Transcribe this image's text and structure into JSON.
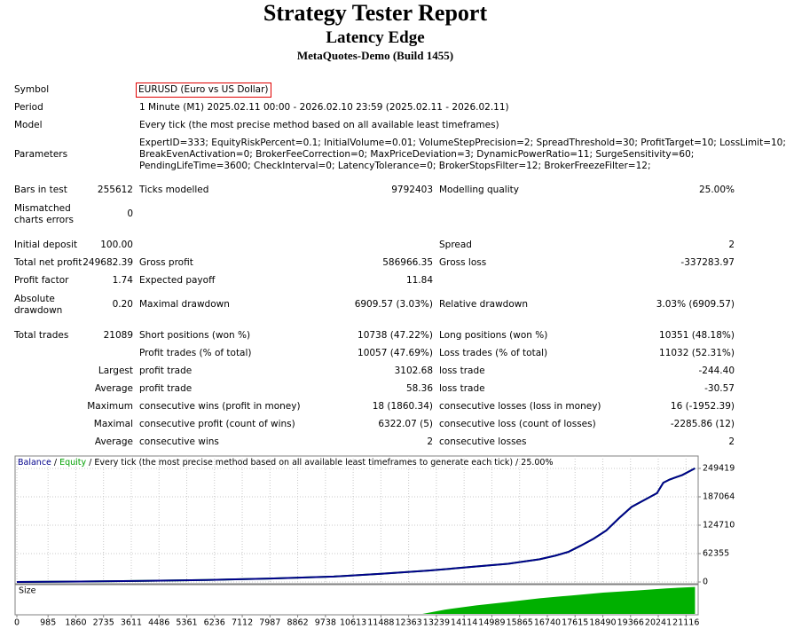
{
  "header": {
    "title": "Strategy Tester Report",
    "subtitle": "Latency Edge",
    "server": "MetaQuotes-Demo (Build 1455)"
  },
  "info": [
    {
      "label": "Symbol",
      "value": [
        "EURUSD (Euro vs US Dollar)"
      ]
    },
    {
      "label": "Period",
      "value": [
        "1 Minute (M1) 2025.02.11 00:00 - 2026.02.10 23:59 (2025.02.11 - 2026.02.11)"
      ]
    },
    {
      "label": "Model",
      "value": [
        "Every tick (the most precise method based on all available least timeframes)"
      ]
    },
    {
      "label": "Parameters",
      "value": [
        "ExpertID=333; EquityRiskPercent=0.1; InitialVolume=0.01; VolumeStepPrecision=2; SpreadThreshold=30; ProfitTarget=10; LossLimit=10;",
        "BreakEvenActivation=0; BrokerFeeCorrection=0; MaxPriceDeviation=3; DynamicPowerRatio=11; SurgeSensitivity=60;",
        "PendingLifeTime=3600; CheckInterval=0; LatencyTolerance=0; BrokerStopsFilter=12; BrokerFreezeFilter=12;"
      ]
    }
  ],
  "stats": [
    {
      "label": "Bars in test",
      "value": "255612",
      "c2": [
        "Ticks modelled",
        "9792403"
      ],
      "c3": [
        "Modelling quality",
        "25.00%"
      ]
    },
    {
      "label": "Mismatched charts errors",
      "value": "0"
    },
    {
      "label": "Initial deposit",
      "value": "100.00",
      "c3": [
        "Spread",
        "2"
      ]
    },
    {
      "label": "Total net profit",
      "value": "249682.39",
      "c2": [
        "Gross profit",
        "586966.35"
      ],
      "c3": [
        "Gross loss",
        "-337283.97"
      ]
    },
    {
      "label": "Profit factor",
      "value": "1.74",
      "c2": [
        "Expected payoff",
        "11.84"
      ]
    },
    {
      "label": "Absolute drawdown",
      "value": "0.20",
      "c2": [
        "Maximal drawdown",
        "6909.57 (3.03%)"
      ],
      "c3": [
        "Relative drawdown",
        "3.03% (6909.57)"
      ]
    },
    {
      "label": "Total trades",
      "value": "21089",
      "c2": [
        "Short positions (won %)",
        "10738 (47.22%)"
      ],
      "c3": [
        "Long positions (won %)",
        "10351 (48.18%)"
      ]
    },
    {
      "c2": [
        "Profit trades (% of total)",
        "10057 (47.69%)"
      ],
      "c3": [
        "Loss trades (% of total)",
        "11032 (52.31%)"
      ]
    },
    {
      "value": "Largest",
      "c2": [
        "profit trade",
        "3102.68"
      ],
      "c3": [
        "loss trade",
        "-244.40"
      ]
    },
    {
      "value": "Average",
      "c2": [
        "profit trade",
        "58.36"
      ],
      "c3": [
        "loss trade",
        "-30.57"
      ]
    },
    {
      "value": "Maximum",
      "c2": [
        "consecutive wins (profit in money)",
        "18 (1860.34)"
      ],
      "c3": [
        "consecutive losses (loss in money)",
        "16 (-1952.39)"
      ]
    },
    {
      "value": "Maximal",
      "c2": [
        "consecutive profit (count of wins)",
        "6322.07 (5)"
      ],
      "c3": [
        "consecutive loss (count of losses)",
        "-2285.86 (12)"
      ]
    },
    {
      "value": "Average",
      "c2": [
        "consecutive wins",
        "2"
      ],
      "c3": [
        "consecutive losses",
        "2"
      ]
    }
  ],
  "chart_data": {
    "type": "line",
    "separator": "/",
    "note": "/ Every tick (the most precise method based on all available least timeframes to generate each tick) / 25.00%",
    "x": [
      0,
      2000,
      4000,
      6000,
      8000,
      10000,
      11500,
      13000,
      14500,
      15500,
      16500,
      17000,
      17400,
      17800,
      18200,
      18600,
      19000,
      19400,
      19800,
      20200,
      20400,
      20600,
      21000,
      21400
    ],
    "series": [
      {
        "name": "Balance",
        "color": "#00008b",
        "values": [
          100,
          1000,
          2500,
          4500,
          7500,
          12000,
          18000,
          25000,
          34000,
          40000,
          50000,
          58000,
          66000,
          80000,
          95000,
          113000,
          140000,
          165000,
          180000,
          195000,
          218000,
          225000,
          235000,
          249682.39
        ]
      },
      {
        "name": "Equity",
        "color": "#00a000",
        "values": [
          100,
          1000,
          2500,
          4500,
          7500,
          12000,
          18000,
          25000,
          34000,
          40000,
          50000,
          58000,
          66000,
          80000,
          95000,
          113000,
          140000,
          165000,
          180000,
          195000,
          218000,
          225000,
          235000,
          249682.39
        ]
      }
    ],
    "xlim": [
      0,
      21500
    ],
    "ylim": [
      0,
      268900
    ],
    "xticks": [
      0,
      985,
      1860,
      2735,
      3611,
      4486,
      5361,
      6236,
      7112,
      7987,
      8862,
      9738,
      10613,
      11488,
      12363,
      13239,
      14114,
      14989,
      15865,
      16740,
      17615,
      18490,
      19366,
      20241,
      21116
    ],
    "yticks": [
      0,
      62355,
      124710,
      187064,
      249419
    ],
    "grid": true,
    "size": {
      "label": "Size",
      "color": "#00b000",
      "x": [
        12800,
        13500,
        14500,
        15500,
        16500,
        17500,
        18500,
        19500,
        20500,
        21400
      ],
      "values": [
        0,
        0.15,
        0.3,
        0.42,
        0.55,
        0.65,
        0.75,
        0.82,
        0.9,
        0.95
      ],
      "ylim": [
        0,
        1
      ]
    }
  }
}
